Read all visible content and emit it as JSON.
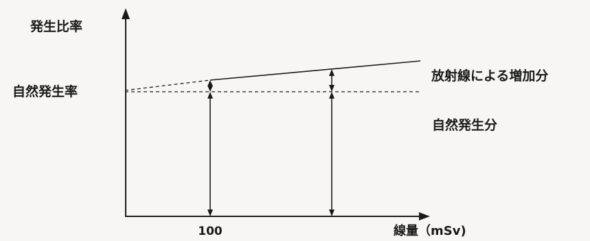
{
  "labels": {
    "y_axis": "発生比率",
    "natural_rate": "自然発生率",
    "radiation_increase": "放射線による増加分",
    "natural_part": "自然発生分",
    "x_tick": "100",
    "x_axis": "線量（mSv)"
  },
  "colors": {
    "ink": "#1a1a1a",
    "background": "#f7f6f4"
  }
}
